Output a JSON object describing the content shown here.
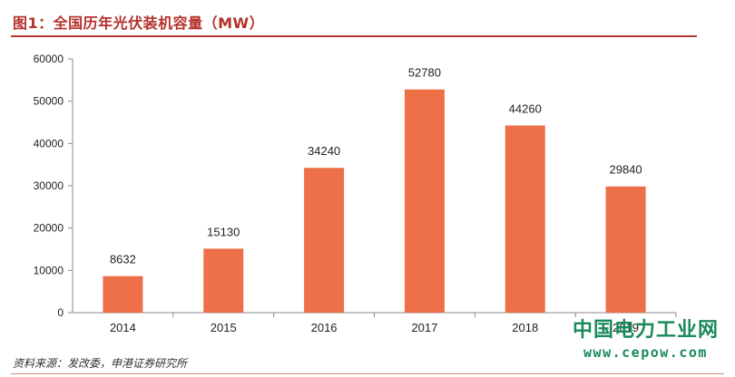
{
  "title": "图1：全国历年光伏装机容量（MW）",
  "source": "资料来源：发改委，申港证券研究所",
  "watermark": {
    "name": "中国电力工业网",
    "url": "www.cepow.com"
  },
  "colors": {
    "bar": "#ee7048",
    "title": "#b5302a",
    "watermark": "#1a8a5a"
  },
  "chart_data": {
    "type": "bar",
    "categories": [
      "2014",
      "2015",
      "2016",
      "2017",
      "2018",
      "2019"
    ],
    "values": [
      8632,
      15130,
      34240,
      52780,
      44260,
      29840
    ],
    "title": "",
    "xlabel": "",
    "ylabel": "",
    "ylim": [
      0,
      60000
    ],
    "yticks": [
      0,
      10000,
      20000,
      30000,
      40000,
      50000,
      60000
    ],
    "grid": false,
    "legend": "none"
  }
}
